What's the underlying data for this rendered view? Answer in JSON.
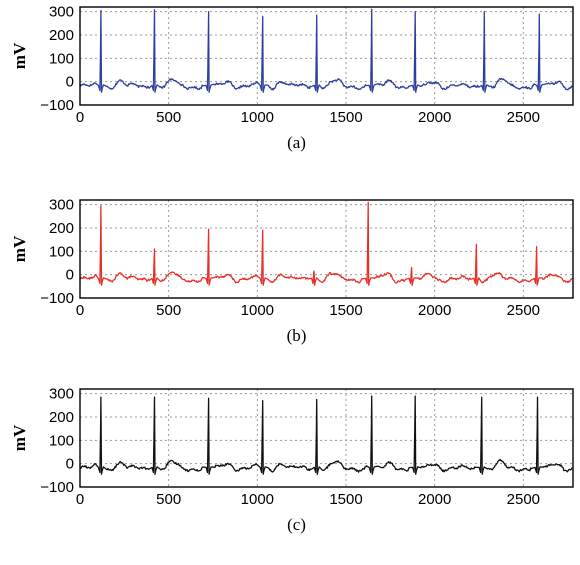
{
  "chart_data": [
    {
      "type": "line",
      "panel_label": "(a)",
      "ylabel": "mV",
      "color": "#2f3fa0",
      "xlim": [
        0,
        2780
      ],
      "ylim": [
        -100,
        320
      ],
      "xticks": [
        0,
        500,
        1000,
        1500,
        2000,
        2500
      ],
      "yticks": [
        -100,
        0,
        100,
        200,
        300
      ],
      "grid": true,
      "baseline": -20,
      "peaks": [
        {
          "x": 118,
          "y": 305
        },
        {
          "x": 420,
          "y": 308
        },
        {
          "x": 725,
          "y": 300
        },
        {
          "x": 1030,
          "y": 280
        },
        {
          "x": 1335,
          "y": 285
        },
        {
          "x": 1645,
          "y": 310
        },
        {
          "x": 1890,
          "y": 300
        },
        {
          "x": 2280,
          "y": 300
        },
        {
          "x": 2590,
          "y": 290
        }
      ]
    },
    {
      "type": "line",
      "panel_label": "(b)",
      "ylabel": "mV",
      "color": "#e8302a",
      "xlim": [
        0,
        2780
      ],
      "ylim": [
        -100,
        320
      ],
      "xticks": [
        0,
        500,
        1000,
        1500,
        2000,
        2500
      ],
      "yticks": [
        -100,
        0,
        100,
        200,
        300
      ],
      "grid": true,
      "baseline": -20,
      "peaks": [
        {
          "x": 118,
          "y": 295
        },
        {
          "x": 420,
          "y": 110
        },
        {
          "x": 725,
          "y": 195
        },
        {
          "x": 1030,
          "y": 190
        },
        {
          "x": 1320,
          "y": 15
        },
        {
          "x": 1625,
          "y": 310
        },
        {
          "x": 1870,
          "y": 30
        },
        {
          "x": 2235,
          "y": 130
        },
        {
          "x": 2575,
          "y": 120
        }
      ]
    },
    {
      "type": "line",
      "panel_label": "(c)",
      "ylabel": "mV",
      "color": "#111111",
      "xlim": [
        0,
        2780
      ],
      "ylim": [
        -100,
        320
      ],
      "xticks": [
        0,
        500,
        1000,
        1500,
        2000,
        2500
      ],
      "yticks": [
        -100,
        0,
        100,
        200,
        300
      ],
      "grid": true,
      "baseline": -20,
      "peaks": [
        {
          "x": 118,
          "y": 285
        },
        {
          "x": 420,
          "y": 285
        },
        {
          "x": 725,
          "y": 280
        },
        {
          "x": 1030,
          "y": 270
        },
        {
          "x": 1335,
          "y": 275
        },
        {
          "x": 1645,
          "y": 290
        },
        {
          "x": 1890,
          "y": 290
        },
        {
          "x": 2265,
          "y": 285
        },
        {
          "x": 2580,
          "y": 285
        }
      ]
    }
  ]
}
